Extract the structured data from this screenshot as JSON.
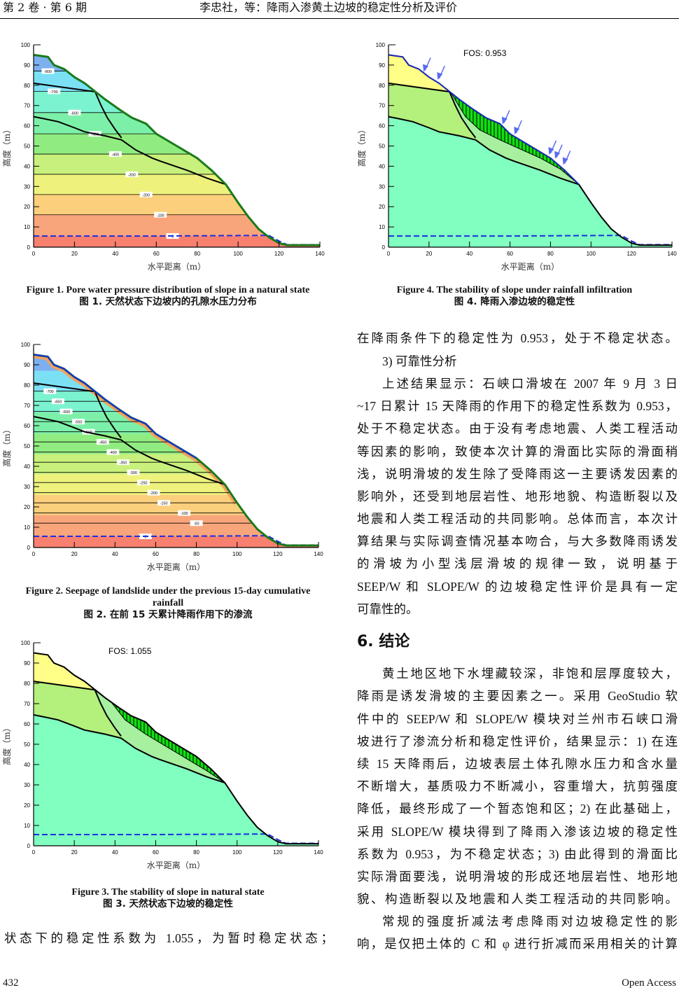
{
  "header": {
    "issue": "第 2 卷 · 第 6 期",
    "running_title": "李忠社，等：降雨入渗黄土边坡的稳定性分析及评价"
  },
  "axes": {
    "y_label": "高度（m）",
    "x_label": "水平距离（m）",
    "y_ticks": [
      "0",
      "10",
      "20",
      "30",
      "40",
      "50",
      "60",
      "70",
      "80",
      "90",
      "100"
    ],
    "x_ticks": [
      "0",
      "20",
      "40",
      "60",
      "80",
      "100",
      "120",
      "140"
    ]
  },
  "chart_data": [
    {
      "type": "diagram",
      "id": "fig1",
      "title_en": "Figure 1. Pore water pressure distribution of slope in a natural state",
      "title_zh": "图 1.  天然状态下边坡内的孔隙水压力分布",
      "xlim": [
        0,
        140
      ],
      "ylim": [
        0,
        100
      ],
      "contour_labels": [
        "-800",
        "-700",
        "-600",
        "-500",
        "-400",
        "-300",
        "-200",
        "-100",
        "0"
      ]
    },
    {
      "type": "diagram",
      "id": "fig2",
      "title_en": "Figure 2. Seepage of landslide under the previous 15-day cumulative rainfall",
      "title_zh": "图 2.  在前 15 天累计降雨作用下的渗流",
      "xlim": [
        0,
        140
      ],
      "ylim": [
        0,
        100
      ],
      "contour_labels": [
        "-700",
        "-650",
        "-600",
        "-550",
        "-500",
        "-450",
        "-400",
        "-350",
        "-300",
        "-250",
        "-200",
        "-150",
        "-100",
        "-50",
        "0"
      ]
    },
    {
      "type": "diagram",
      "id": "fig3",
      "title_en": "Figure 3. The stability of slope in natural state",
      "title_zh": "图 3.  天然状态下边坡的稳定性",
      "xlim": [
        0,
        140
      ],
      "ylim": [
        0,
        100
      ],
      "fos": "FOS: 1.055"
    },
    {
      "type": "diagram",
      "id": "fig4",
      "title_en": "Figure 4. The stability of slope under rainfall infiltration",
      "title_zh": "图 4.  降雨入渗边坡的稳定性",
      "xlim": [
        0,
        140
      ],
      "ylim": [
        0,
        100
      ],
      "fos": "FOS: 0.953"
    }
  ],
  "left_text": [
    "状态下的稳定性系数为  1.055，为暂时稳定状态；"
  ],
  "right_text_a": [
    "在降雨条件下的稳定性为 0.953，处于不稳定状态。",
    "3)  可靠性分析",
    "上述结果显示：石峡口滑坡在 2007 年 9 月 3 日",
    "~17 日累计 15 天降雨的作用下的稳定性系数为 0.953，",
    "处于不稳定状态。由于没有考虑地震、人类工程活动",
    "等因素的影响，致使本次计算的滑面比实际的滑面稍",
    "浅，说明滑坡的发生除了受降雨这一主要诱发因素的",
    "影响外，还受到地层岩性、地形地貌、构造断裂以及",
    "地震和人类工程活动的共同影响。总体而言，本次计",
    "算结果与实际调查情况基本吻合，与大多数降雨诱发",
    "的滑坡为小型浅层滑坡的规律一致，说明基于",
    "SEEP/W 和 SLOPE/W 的边坡稳定性评价是具有一定",
    "可靠性的。"
  ],
  "section_heading": "6.  结论",
  "right_text_b": [
    "黄土地区地下水埋藏较深，非饱和层厚度较大，",
    "降雨是诱发滑坡的主要因素之一。采用 GeoStudio 软",
    "件中的 SEEP/W 和 SLOPE/W 模块对兰州市石峡口滑",
    "坡进行了渗流分析和稳定性评价，结果显示：1) 在连",
    "续 15 天降雨后，边坡表层土体孔隙水压力和含水量",
    "不断增大，基质吸力不断减小，容重增大，抗剪强度",
    "降低，最终形成了一个暂态饱和区；2) 在此基础上，",
    "采用 SLOPE/W 模块得到了降雨入渗该边坡的稳定性",
    "系数为 0.953，为不稳定状态；3) 由此得到的滑面比",
    "实际滑面要浅，说明滑坡的形成还地层岩性、地形地",
    "貌、构造断裂以及地震和人类工程活动的共同影响。",
    "常规的强度折减法考虑降雨对边坡稳定性的影",
    "响，是仅把土体的 C 和 φ 进行折减而采用相关的计算"
  ],
  "footer": {
    "page_number": "432",
    "publisher": "Open Access"
  }
}
